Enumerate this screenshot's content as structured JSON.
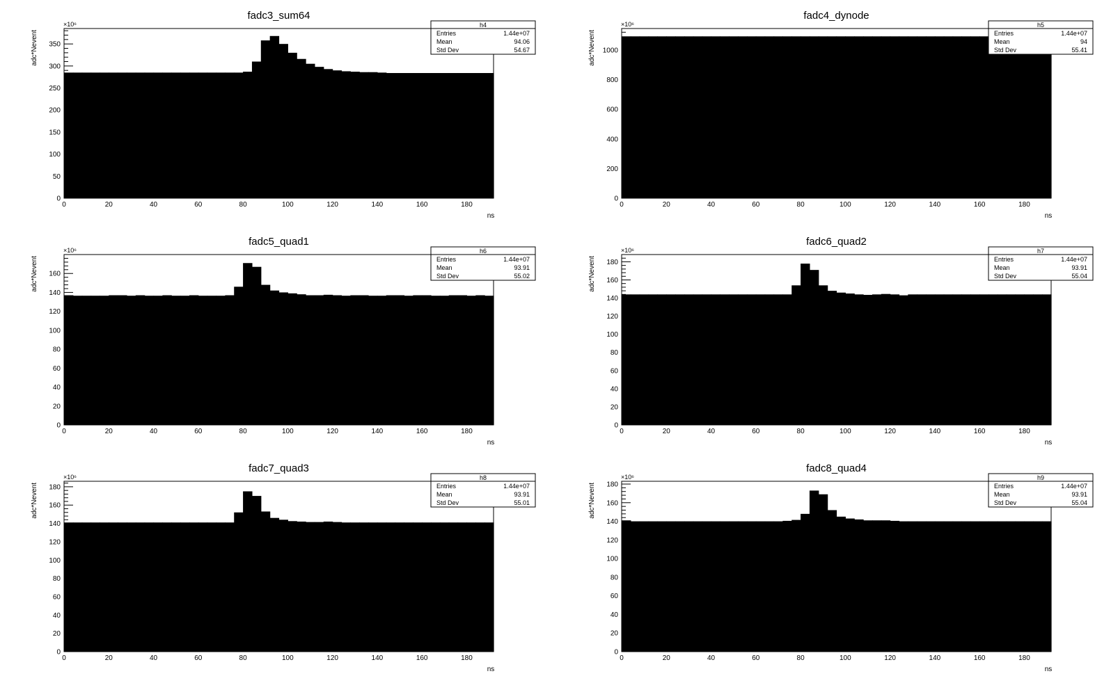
{
  "chart_data": [
    {
      "type": "bar",
      "title": "fadc3_sum64",
      "xlabel": "ns",
      "ylabel": "adc*Nevent",
      "y_multiplier": "×10⁶",
      "xlim": [
        0,
        192
      ],
      "ylim": [
        0,
        385
      ],
      "x_ticks": [
        0,
        20,
        40,
        60,
        80,
        100,
        120,
        140,
        160,
        180
      ],
      "y_ticks": [
        0,
        50,
        100,
        150,
        200,
        250,
        300,
        350
      ],
      "bin_width": 4,
      "values": [
        285,
        285,
        285,
        285,
        285,
        285,
        285,
        285,
        285,
        285,
        285,
        285,
        285,
        285,
        285,
        285,
        285,
        285,
        285,
        285,
        287,
        310,
        358,
        368,
        350,
        330,
        316,
        305,
        298,
        293,
        290,
        288,
        287,
        286,
        286,
        285,
        284,
        284,
        284,
        284,
        284,
        284,
        284,
        284,
        284,
        284,
        284,
        284
      ],
      "stats": {
        "name": "h4",
        "rows": [
          {
            "label": "Entries",
            "value": "1.44e+07"
          },
          {
            "label": "Mean",
            "value": "94.06"
          },
          {
            "label": "Std Dev",
            "value": "54.67"
          }
        ]
      }
    },
    {
      "type": "bar",
      "title": "fadc4_dynode",
      "xlabel": "ns",
      "ylabel": "adc*Nevent",
      "y_multiplier": "×10⁶",
      "xlim": [
        0,
        192
      ],
      "ylim": [
        0,
        1145
      ],
      "x_ticks": [
        0,
        20,
        40,
        60,
        80,
        100,
        120,
        140,
        160,
        180
      ],
      "y_ticks": [
        0,
        200,
        400,
        600,
        800,
        1000
      ],
      "bin_width": 4,
      "values": [
        1092,
        1092,
        1092,
        1092,
        1092,
        1092,
        1092,
        1092,
        1092,
        1092,
        1092,
        1092,
        1092,
        1092,
        1092,
        1092,
        1092,
        1092,
        1092,
        1092,
        1092,
        1092,
        1092,
        1092,
        1092,
        1092,
        1092,
        1092,
        1092,
        1092,
        1092,
        1092,
        1092,
        1092,
        1092,
        1092,
        1092,
        1092,
        1092,
        1092,
        1092,
        1092,
        1092,
        1092,
        1092,
        1092,
        1092,
        1092
      ],
      "stats": {
        "name": "h5",
        "rows": [
          {
            "label": "Entries",
            "value": "1.44e+07"
          },
          {
            "label": "Mean",
            "value": "94"
          },
          {
            "label": "Std Dev",
            "value": "55.41"
          }
        ]
      }
    },
    {
      "type": "bar",
      "title": "fadc5_quad1",
      "xlabel": "ns",
      "ylabel": "adc*Nevent",
      "y_multiplier": "×10⁶",
      "xlim": [
        0,
        192
      ],
      "ylim": [
        0,
        180
      ],
      "x_ticks": [
        0,
        20,
        40,
        60,
        80,
        100,
        120,
        140,
        160,
        180
      ],
      "y_ticks": [
        0,
        20,
        40,
        60,
        80,
        100,
        120,
        140,
        160
      ],
      "bin_width": 4,
      "values": [
        137,
        136.5,
        136.5,
        136.5,
        136.5,
        137,
        137,
        136.5,
        137,
        136.5,
        136.5,
        137,
        136.5,
        136.5,
        137,
        136.5,
        136.5,
        136.5,
        137,
        146,
        171,
        167,
        148,
        142,
        140,
        139,
        138,
        137,
        137,
        137.5,
        137,
        136.5,
        137,
        137,
        136.5,
        136.5,
        137,
        137,
        136.5,
        137,
        137,
        136.5,
        136.5,
        137,
        137,
        136.5,
        137,
        136.5
      ],
      "stats": {
        "name": "h6",
        "rows": [
          {
            "label": "Entries",
            "value": "1.44e+07"
          },
          {
            "label": "Mean",
            "value": "93.91"
          },
          {
            "label": "Std Dev",
            "value": "55.02"
          }
        ]
      }
    },
    {
      "type": "bar",
      "title": "fadc6_quad2",
      "xlabel": "ns",
      "ylabel": "adc*Nevent",
      "y_multiplier": "×10⁶",
      "xlim": [
        0,
        192
      ],
      "ylim": [
        0,
        188
      ],
      "x_ticks": [
        0,
        20,
        40,
        60,
        80,
        100,
        120,
        140,
        160,
        180
      ],
      "y_ticks": [
        0,
        20,
        40,
        60,
        80,
        100,
        120,
        140,
        160,
        180
      ],
      "bin_width": 4,
      "values": [
        144,
        144,
        144,
        144,
        144,
        144,
        144,
        144,
        144,
        144,
        144,
        144,
        144,
        144,
        144,
        144,
        144,
        144,
        144,
        154,
        178,
        171,
        154,
        148,
        146,
        145,
        144,
        143.5,
        144,
        144.5,
        144,
        143,
        144,
        144,
        144,
        144,
        144,
        144,
        144,
        144,
        144,
        144,
        144,
        144,
        144,
        144,
        144,
        144
      ],
      "stats": {
        "name": "h7",
        "rows": [
          {
            "label": "Entries",
            "value": "1.44e+07"
          },
          {
            "label": "Mean",
            "value": "93.91"
          },
          {
            "label": "Std Dev",
            "value": "55.04"
          }
        ]
      }
    },
    {
      "type": "bar",
      "title": "fadc7_quad3",
      "xlabel": "ns",
      "ylabel": "adc*Nevent",
      "y_multiplier": "×10⁶",
      "xlim": [
        0,
        192
      ],
      "ylim": [
        0,
        186
      ],
      "x_ticks": [
        0,
        20,
        40,
        60,
        80,
        100,
        120,
        140,
        160,
        180
      ],
      "y_ticks": [
        0,
        20,
        40,
        60,
        80,
        100,
        120,
        140,
        160,
        180
      ],
      "bin_width": 4,
      "values": [
        141,
        141,
        141,
        141,
        141,
        141,
        141,
        141,
        141,
        141,
        141,
        141,
        141,
        141,
        141,
        141,
        141,
        141,
        141,
        152,
        175,
        170,
        153,
        146,
        144,
        142.5,
        142,
        141.5,
        141.5,
        142,
        141.5,
        141,
        141,
        141,
        141,
        141,
        141,
        141,
        141,
        141,
        141,
        141,
        141,
        141,
        141,
        141,
        141,
        141
      ],
      "stats": {
        "name": "h8",
        "rows": [
          {
            "label": "Entries",
            "value": "1.44e+07"
          },
          {
            "label": "Mean",
            "value": "93.91"
          },
          {
            "label": "Std Dev",
            "value": "55.01"
          }
        ]
      }
    },
    {
      "type": "bar",
      "title": "fadc8_quad4",
      "xlabel": "ns",
      "ylabel": "adc*Nevent",
      "y_multiplier": "×10⁶",
      "xlim": [
        0,
        192
      ],
      "ylim": [
        0,
        183
      ],
      "x_ticks": [
        0,
        20,
        40,
        60,
        80,
        100,
        120,
        140,
        160,
        180
      ],
      "y_ticks": [
        0,
        20,
        40,
        60,
        80,
        100,
        120,
        140,
        160,
        180
      ],
      "bin_width": 4,
      "values": [
        141,
        140,
        140,
        140,
        140,
        140,
        140,
        140,
        140,
        140,
        140,
        140,
        140,
        140,
        140,
        140,
        140,
        140,
        140.5,
        141.5,
        148,
        173,
        169,
        152,
        145,
        143,
        142,
        141,
        141,
        141,
        140.5,
        140,
        140,
        140,
        140,
        140,
        140,
        140,
        140,
        140,
        140,
        140,
        140,
        140,
        140,
        140,
        140,
        140
      ],
      "stats": {
        "name": "h9",
        "rows": [
          {
            "label": "Entries",
            "value": "1.44e+07"
          },
          {
            "label": "Mean",
            "value": "93.91"
          },
          {
            "label": "Std Dev",
            "value": "55.04"
          }
        ]
      }
    }
  ]
}
